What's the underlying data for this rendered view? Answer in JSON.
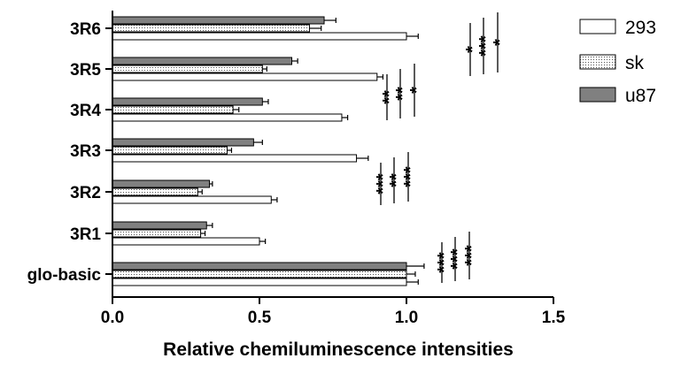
{
  "chart_data": {
    "type": "bar",
    "orientation": "horizontal",
    "categories": [
      "glo-basic",
      "3R1",
      "3R2",
      "3R3",
      "3R4",
      "3R5",
      "3R6"
    ],
    "series": [
      {
        "name": "293",
        "values": [
          1.0,
          0.5,
          0.54,
          0.83,
          0.78,
          0.9,
          1.0
        ],
        "errors": [
          0.04,
          0.02,
          0.02,
          0.04,
          0.02,
          0.02,
          0.04
        ],
        "fill": "#ffffff",
        "pattern": "none"
      },
      {
        "name": "sk",
        "values": [
          1.0,
          0.3,
          0.29,
          0.39,
          0.41,
          0.51,
          0.67
        ],
        "errors": [
          0.03,
          0.015,
          0.015,
          0.015,
          0.02,
          0.015,
          0.04
        ],
        "fill": "#ffffff",
        "pattern": "dots"
      },
      {
        "name": "u87",
        "values": [
          1.0,
          0.32,
          0.33,
          0.48,
          0.51,
          0.61,
          0.72
        ],
        "errors": [
          0.06,
          0.02,
          0.01,
          0.03,
          0.02,
          0.02,
          0.04
        ],
        "fill": "#808080",
        "pattern": "none"
      }
    ],
    "xlabel": "Relative chemiluminescence intensities",
    "ylabel": "",
    "xlim": [
      0,
      1.5
    ],
    "xticks": [
      "0.0",
      "0.5",
      "1.0",
      "1.5"
    ],
    "legend_position": "top-right",
    "grid": false,
    "significance": [
      {
        "category": "glo-basic",
        "marks": [
          "***",
          "***",
          "***"
        ]
      },
      {
        "category": "3R2",
        "marks": [
          "***",
          "**",
          "***"
        ]
      },
      {
        "category": "3R4",
        "marks": [
          "**",
          "**",
          "*"
        ]
      },
      {
        "category": "3R6",
        "marks": [
          "*",
          "***",
          "*"
        ]
      }
    ]
  }
}
